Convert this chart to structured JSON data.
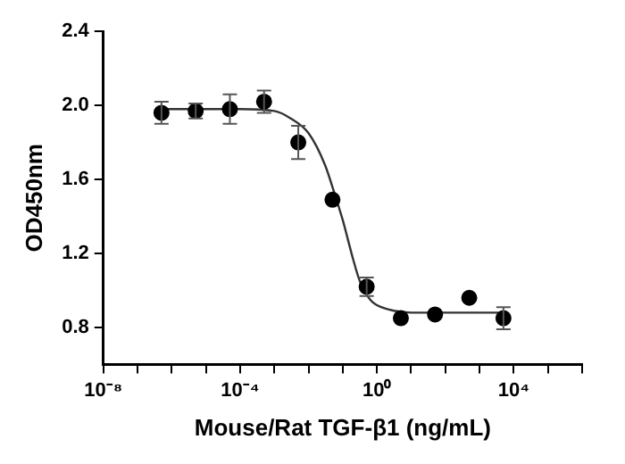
{
  "chart_data": {
    "type": "scatter",
    "xlabel": "Mouse/Rat TGF-β1 (ng/mL)",
    "ylabel": "OD450nm",
    "log": "x",
    "grid": false,
    "legend": false,
    "marker": "circle",
    "xlim": [
      1e-08,
      1000000.0
    ],
    "xticks": [
      {
        "value": 1e-08,
        "label": "10⁻⁸"
      },
      {
        "value": 1e-07,
        "label": null
      },
      {
        "value": 1e-06,
        "label": null
      },
      {
        "value": 1e-05,
        "label": null
      },
      {
        "value": 0.0001,
        "label": "10⁻⁴"
      },
      {
        "value": 0.001,
        "label": null
      },
      {
        "value": 0.01,
        "label": null
      },
      {
        "value": 0.1,
        "label": null
      },
      {
        "value": 1,
        "label": "10⁰"
      },
      {
        "value": 10,
        "label": null
      },
      {
        "value": 100,
        "label": null
      },
      {
        "value": 1000,
        "label": null
      },
      {
        "value": 10000,
        "label": "10⁴"
      },
      {
        "value": 100000,
        "label": null
      },
      {
        "value": 1000000,
        "label": null
      }
    ],
    "ylim": [
      0.6,
      2.4
    ],
    "yticks": [
      {
        "value": 0.8,
        "label": "0.8"
      },
      {
        "value": 1.2,
        "label": "1.2"
      },
      {
        "value": 1.6,
        "label": "1.6"
      },
      {
        "value": 2.0,
        "label": "2.0"
      },
      {
        "value": 2.4,
        "label": "2.4"
      }
    ],
    "series": [
      {
        "type": "scatter",
        "color": "#000000",
        "x": [
          5e-07,
          5e-06,
          5e-05,
          0.0005,
          0.005,
          0.05,
          0.5,
          5,
          50,
          500,
          5000
        ],
        "values": [
          1.96,
          1.97,
          1.98,
          2.02,
          1.8,
          1.49,
          1.02,
          0.85,
          0.87,
          0.96,
          0.85
        ],
        "errors": [
          0.06,
          0.04,
          0.08,
          0.06,
          0.09,
          null,
          0.05,
          null,
          null,
          null,
          0.06
        ]
      },
      {
        "type": "line",
        "color": "#333333",
        "marker": "none",
        "x": [
          5e-07,
          0.0001,
          0.001,
          0.003,
          0.01,
          0.03,
          0.063,
          0.1,
          0.2,
          0.316,
          0.63,
          1,
          3.16,
          10,
          5000
        ],
        "values": [
          1.98,
          1.98,
          1.97,
          1.93,
          1.85,
          1.68,
          1.5,
          1.38,
          1.17,
          1.05,
          0.95,
          0.92,
          0.89,
          0.88,
          0.88
        ]
      }
    ]
  }
}
